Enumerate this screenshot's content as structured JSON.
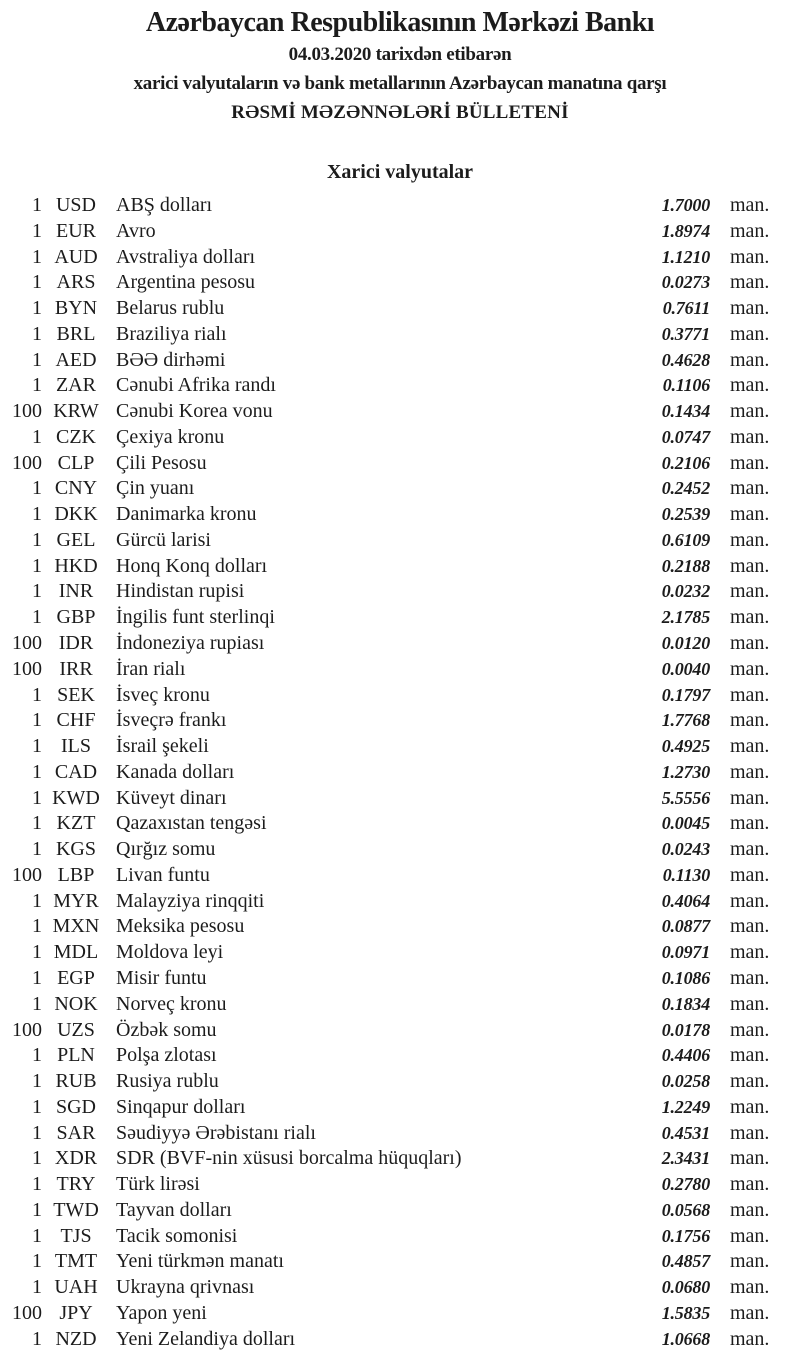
{
  "colors": {
    "text": "#1c1c1c",
    "background": "#ffffff"
  },
  "header": {
    "bank_name": "Azərbaycan Respublikasının Mərkəzi Bankı",
    "date_line": "04.03.2020 tarixdən etibarən",
    "subject_line": "xarici valyutaların və bank metallarının Azərbaycan manatına qarşı",
    "bulletin_title": "RƏSMİ MƏZƏNNƏLƏRİ BÜLLETENİ"
  },
  "section": {
    "title": "Xarici valyutalar"
  },
  "table": {
    "unit_label": "man.",
    "rows": [
      {
        "qty": "1",
        "code": "USD",
        "name": "ABŞ dolları",
        "rate": "1.7000"
      },
      {
        "qty": "1",
        "code": "EUR",
        "name": "Avro",
        "rate": "1.8974"
      },
      {
        "qty": "1",
        "code": "AUD",
        "name": "Avstraliya dolları",
        "rate": "1.1210"
      },
      {
        "qty": "1",
        "code": "ARS",
        "name": "Argentina pesosu",
        "rate": "0.0273"
      },
      {
        "qty": "1",
        "code": "BYN",
        "name": "Belarus rublu",
        "rate": "0.7611"
      },
      {
        "qty": "1",
        "code": "BRL",
        "name": "Braziliya rialı",
        "rate": "0.3771"
      },
      {
        "qty": "1",
        "code": "AED",
        "name": "BƏƏ dirhəmi",
        "rate": "0.4628"
      },
      {
        "qty": "1",
        "code": "ZAR",
        "name": "Cənubi Afrika randı",
        "rate": "0.1106"
      },
      {
        "qty": "100",
        "code": "KRW",
        "name": "Cənubi Korea vonu",
        "rate": "0.1434"
      },
      {
        "qty": "1",
        "code": "CZK",
        "name": "Çexiya kronu",
        "rate": "0.0747"
      },
      {
        "qty": "100",
        "code": "CLP",
        "name": "Çili Pesosu",
        "rate": "0.2106"
      },
      {
        "qty": "1",
        "code": "CNY",
        "name": "Çin yuanı",
        "rate": "0.2452"
      },
      {
        "qty": "1",
        "code": "DKK",
        "name": "Danimarka kronu",
        "rate": "0.2539"
      },
      {
        "qty": "1",
        "code": "GEL",
        "name": "Gürcü larisi",
        "rate": "0.6109"
      },
      {
        "qty": "1",
        "code": "HKD",
        "name": "Honq Konq dolları",
        "rate": "0.2188"
      },
      {
        "qty": "1",
        "code": "INR",
        "name": "Hindistan rupisi",
        "rate": "0.0232"
      },
      {
        "qty": "1",
        "code": "GBP",
        "name": "İngilis funt sterlinqi",
        "rate": "2.1785"
      },
      {
        "qty": "100",
        "code": "IDR",
        "name": "İndoneziya rupiası",
        "rate": "0.0120"
      },
      {
        "qty": "100",
        "code": "IRR",
        "name": "İran rialı",
        "rate": "0.0040"
      },
      {
        "qty": "1",
        "code": "SEK",
        "name": "İsveç kronu",
        "rate": "0.1797"
      },
      {
        "qty": "1",
        "code": "CHF",
        "name": "İsveçrə frankı",
        "rate": "1.7768"
      },
      {
        "qty": "1",
        "code": "ILS",
        "name": "İsrail şekeli",
        "rate": "0.4925"
      },
      {
        "qty": "1",
        "code": "CAD",
        "name": "Kanada dolları",
        "rate": "1.2730"
      },
      {
        "qty": "1",
        "code": "KWD",
        "name": "Küveyt dinarı",
        "rate": "5.5556"
      },
      {
        "qty": "1",
        "code": "KZT",
        "name": "Qazaxıstan tengəsi",
        "rate": "0.0045"
      },
      {
        "qty": "1",
        "code": "KGS",
        "name": "Qırğız somu",
        "rate": "0.0243"
      },
      {
        "qty": "100",
        "code": "LBP",
        "name": "Livan funtu",
        "rate": "0.1130"
      },
      {
        "qty": "1",
        "code": "MYR",
        "name": "Malayziya rinqqiti",
        "rate": "0.4064"
      },
      {
        "qty": "1",
        "code": "MXN",
        "name": "Meksika pesosu",
        "rate": "0.0877"
      },
      {
        "qty": "1",
        "code": "MDL",
        "name": "Moldova leyi",
        "rate": "0.0971"
      },
      {
        "qty": "1",
        "code": "EGP",
        "name": "Misir funtu",
        "rate": "0.1086"
      },
      {
        "qty": "1",
        "code": "NOK",
        "name": "Norveç kronu",
        "rate": "0.1834"
      },
      {
        "qty": "100",
        "code": "UZS",
        "name": "Özbək somu",
        "rate": "0.0178"
      },
      {
        "qty": "1",
        "code": "PLN",
        "name": "Polşa zlotası",
        "rate": "0.4406"
      },
      {
        "qty": "1",
        "code": "RUB",
        "name": "Rusiya rublu",
        "rate": "0.0258"
      },
      {
        "qty": "1",
        "code": "SGD",
        "name": "Sinqapur dolları",
        "rate": "1.2249"
      },
      {
        "qty": "1",
        "code": "SAR",
        "name": "Səudiyyə Ərəbistanı rialı",
        "rate": "0.4531"
      },
      {
        "qty": "1",
        "code": "XDR",
        "name": "SDR (BVF-nin xüsusi borcalma hüquqları)",
        "rate": "2.3431"
      },
      {
        "qty": "1",
        "code": "TRY",
        "name": "Türk lirəsi",
        "rate": "0.2780"
      },
      {
        "qty": "1",
        "code": "TWD",
        "name": "Tayvan dolları",
        "rate": "0.0568"
      },
      {
        "qty": "1",
        "code": "TJS",
        "name": "Tacik somonisi",
        "rate": "0.1756"
      },
      {
        "qty": "1",
        "code": "TMT",
        "name": "Yeni türkmən manatı",
        "rate": "0.4857"
      },
      {
        "qty": "1",
        "code": "UAH",
        "name": "Ukrayna qrivnası",
        "rate": "0.0680"
      },
      {
        "qty": "100",
        "code": "JPY",
        "name": "Yapon yeni",
        "rate": "1.5835"
      },
      {
        "qty": "1",
        "code": "NZD",
        "name": "Yeni Zelandiya dolları",
        "rate": "1.0668"
      }
    ]
  }
}
